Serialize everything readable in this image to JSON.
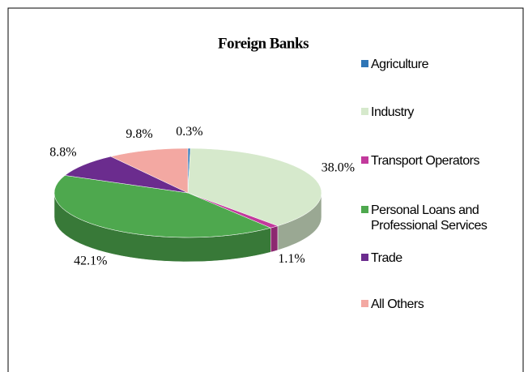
{
  "chart_data": {
    "type": "pie3d",
    "title": "Foreign Banks",
    "categories": [
      "Agriculture",
      "Industry",
      "Transport Operators",
      "Personal Loans and Professional Services",
      "Trade",
      "All Others"
    ],
    "values": [
      0.3,
      38.0,
      1.1,
      42.1,
      8.8,
      9.8
    ],
    "value_labels": [
      "0.3%",
      "38.0%",
      "1.1%",
      "42.1%",
      "8.8%",
      "9.8%"
    ],
    "colors": [
      "#2e75b6",
      "#d6e9cc",
      "#c2399c",
      "#4ea84e",
      "#6b2c8e",
      "#f3a8a2"
    ],
    "legend": "right"
  }
}
